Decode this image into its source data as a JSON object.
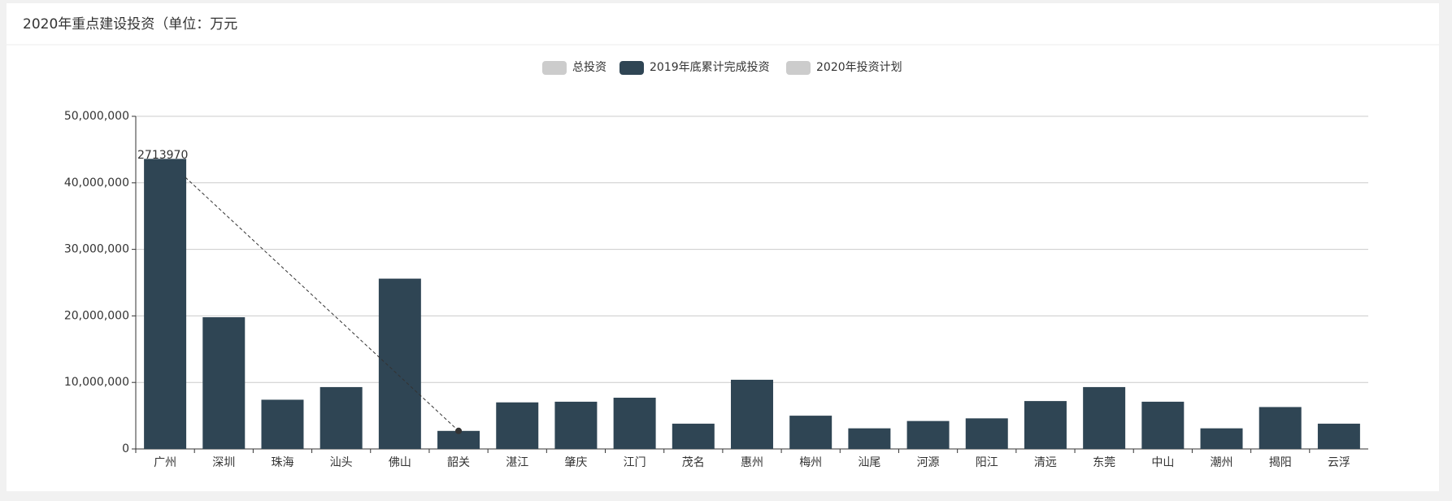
{
  "chart_data": {
    "type": "bar",
    "title": "2020年重点建设投资（单位：万元",
    "categories": [
      "广州",
      "深圳",
      "珠海",
      "汕头",
      "佛山",
      "韶关",
      "湛江",
      "肇庆",
      "江门",
      "茂名",
      "惠州",
      "梅州",
      "汕尾",
      "河源",
      "阳江",
      "清远",
      "东莞",
      "中山",
      "潮州",
      "揭阳",
      "云浮"
    ],
    "series": [
      {
        "name": "总投资",
        "color": "#cccccc",
        "visible": false
      },
      {
        "name": "2019年底累计完成投资",
        "color": "#2f4554",
        "visible": true,
        "values": [
          43600000,
          19800000,
          7400000,
          9300000,
          25600000,
          2713970,
          7000000,
          7100000,
          7700000,
          3800000,
          10400000,
          5000000,
          3100000,
          4200000,
          4600000,
          7200000,
          9300000,
          7100000,
          3100000,
          6300000,
          3800000
        ]
      },
      {
        "name": "2020年投资计划",
        "color": "#cccccc",
        "visible": false
      }
    ],
    "ylim": [
      0,
      50000000
    ],
    "yticks": [
      0,
      {
        "value": 10000000,
        "label": "10,000,000"
      },
      {
        "value": 20000000,
        "label": "20,000,000"
      },
      {
        "value": 30000000,
        "label": "30,000,000"
      },
      {
        "value": 40000000,
        "label": "40,000,000"
      },
      {
        "value": 50000000,
        "label": "50,000,000"
      }
    ],
    "grid": true
  }
}
